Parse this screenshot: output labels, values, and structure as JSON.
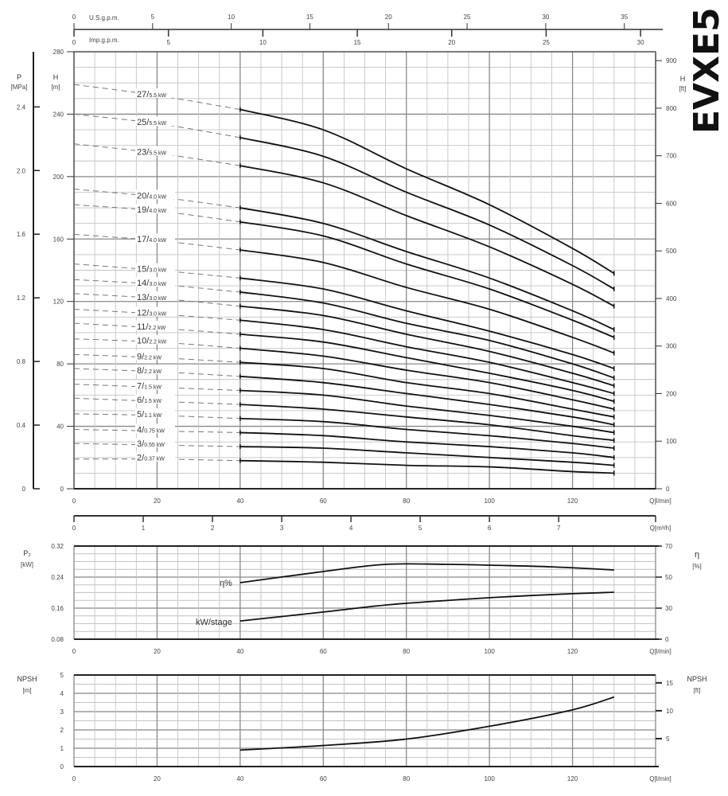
{
  "brand": "EVXE5",
  "top_axes": {
    "us_gpm": {
      "label": "U.S.g.p.m.",
      "ticks": [
        "0",
        "5",
        "10",
        "15",
        "20",
        "25",
        "30",
        "35"
      ]
    },
    "imp_gpm": {
      "label": "Imp.g.p.m.",
      "ticks": [
        "0",
        "5",
        "10",
        "15",
        "20",
        "25",
        "30"
      ]
    },
    "m3h": {
      "label": "Q[m³/h]",
      "ticks": [
        "0",
        "1",
        "2",
        "3",
        "4",
        "5",
        "6",
        "7"
      ]
    }
  },
  "chart_data": [
    {
      "type": "line",
      "xlabel": "Q[l/min]",
      "ylabel": "H",
      "ylabel_unit": "[m]",
      "y2label": "H",
      "y2label_unit": "[ft]",
      "y3label": "P",
      "y3label_unit": "[MPa]",
      "xlim": [
        0,
        140
      ],
      "ylim": [
        0,
        280
      ],
      "grid": true,
      "x_ticks": [
        "0",
        "20",
        "40",
        "60",
        "80",
        "100",
        "120"
      ],
      "y_ticks": [
        "0",
        "40",
        "80",
        "120",
        "160",
        "200",
        "240",
        "280"
      ],
      "ft_ticks": [
        "0",
        "100",
        "200",
        "300",
        "400",
        "500",
        "600",
        "700",
        "800",
        "900"
      ],
      "mpa_ticks": [
        "0",
        "0.4",
        "0.8",
        "1.2",
        "1.6",
        "2.0",
        "2.4"
      ],
      "x": [
        0,
        20,
        40,
        60,
        80,
        100,
        120,
        130
      ],
      "operating_range": [
        40,
        130
      ],
      "series": [
        {
          "stages": "27",
          "power": "5.5 kW",
          "values": [
            259,
            252,
            243,
            230,
            205,
            182,
            154,
            138
          ]
        },
        {
          "stages": "25",
          "power": "5.5 kW",
          "values": [
            240,
            234,
            225,
            213,
            190,
            169,
            143,
            128
          ]
        },
        {
          "stages": "23",
          "power": "5.5 kW",
          "values": [
            221,
            215,
            207,
            196,
            175,
            155,
            131,
            117
          ]
        },
        {
          "stages": "20",
          "power": "4.0 kW",
          "values": [
            192,
            187,
            180,
            170,
            152,
            135,
            114,
            102
          ]
        },
        {
          "stages": "19",
          "power": "4.0 kW",
          "values": [
            182,
            178,
            171,
            162,
            144,
            128,
            108,
            97
          ]
        },
        {
          "stages": "17",
          "power": "4.0 kW",
          "values": [
            163,
            159,
            153,
            145,
            129,
            115,
            97,
            87
          ]
        },
        {
          "stages": "15",
          "power": "3.0 kW",
          "values": [
            144,
            140,
            135,
            128,
            114,
            101,
            86,
            77
          ]
        },
        {
          "stages": "14",
          "power": "3.0 kW",
          "values": [
            134,
            131,
            126,
            119,
            106,
            95,
            80,
            71
          ]
        },
        {
          "stages": "13",
          "power": "3.0 kW",
          "values": [
            125,
            122,
            117,
            111,
            99,
            88,
            74,
            66
          ]
        },
        {
          "stages": "12",
          "power": "3.0 kW",
          "values": [
            115,
            112,
            108,
            102,
            91,
            81,
            68,
            61
          ]
        },
        {
          "stages": "11",
          "power": "2.2 kW",
          "values": [
            106,
            103,
            99,
            94,
            84,
            74,
            63,
            56
          ]
        },
        {
          "stages": "10",
          "power": "2.2 kW",
          "values": [
            96,
            94,
            90,
            85,
            76,
            68,
            57,
            51
          ]
        },
        {
          "stages": "9",
          "power": "2.2 kW",
          "values": [
            86,
            84,
            81,
            77,
            68,
            61,
            51,
            46
          ]
        },
        {
          "stages": "8",
          "power": "2.2 kW",
          "values": [
            77,
            75,
            72,
            68,
            61,
            54,
            46,
            41
          ]
        },
        {
          "stages": "7",
          "power": "1.5 kW",
          "values": [
            67,
            65,
            63,
            60,
            53,
            47,
            40,
            36
          ]
        },
        {
          "stages": "6",
          "power": "1.5 kW",
          "values": [
            58,
            56,
            54,
            51,
            46,
            41,
            34,
            31
          ]
        },
        {
          "stages": "5",
          "power": "1.1 kW",
          "values": [
            48,
            47,
            45,
            43,
            38,
            34,
            29,
            26
          ]
        },
        {
          "stages": "4",
          "power": "0.75 kW",
          "values": [
            38,
            37,
            36,
            34,
            30,
            27,
            23,
            20
          ]
        },
        {
          "stages": "3",
          "power": "0.55 kW",
          "values": [
            29,
            28,
            27,
            26,
            23,
            20,
            17,
            15
          ]
        },
        {
          "stages": "2",
          "power": "0.37 kW",
          "values": [
            19,
            19,
            18,
            17,
            15,
            14,
            11,
            10
          ]
        }
      ]
    },
    {
      "type": "line",
      "xlabel": "Q[l/min]",
      "ylabel": "P₂",
      "ylabel_unit": "[kW]",
      "y2label": "η",
      "y2label_unit": "[%]",
      "xlim": [
        0,
        140
      ],
      "ylim": [
        0.08,
        0.32
      ],
      "grid": true,
      "x_ticks": [
        "0",
        "20",
        "40",
        "60",
        "80",
        "100",
        "120"
      ],
      "y_ticks": [
        "0.08",
        "0.16",
        "0.24",
        "0.32"
      ],
      "y2_ticks": [
        "0",
        "30",
        "50",
        "70"
      ],
      "series": [
        {
          "name": "η%",
          "axis": "right",
          "x": [
            40,
            60,
            75,
            90,
            100,
            115,
            130
          ],
          "values": [
            46.4,
            53.6,
            58.2,
            58.2,
            57.7,
            56.6,
            54.6
          ]
        },
        {
          "name": "kW/stage",
          "axis": "left",
          "x": [
            40,
            60,
            75,
            90,
            100,
            115,
            130
          ],
          "values": [
            0.127,
            0.15,
            0.168,
            0.18,
            0.187,
            0.195,
            0.201
          ]
        }
      ]
    },
    {
      "type": "line",
      "xlabel": "Q[l/min]",
      "ylabel": "NPSH",
      "ylabel_unit": "[m]",
      "y2label": "NPSH",
      "y2label_unit": "[ft]",
      "xlim": [
        0,
        140
      ],
      "ylim": [
        0,
        5
      ],
      "grid": true,
      "x_ticks": [
        "0",
        "20",
        "40",
        "60",
        "80",
        "100",
        "120"
      ],
      "y_ticks": [
        "0",
        "1",
        "2",
        "3",
        "4",
        "5"
      ],
      "y2_ticks": [
        "5",
        "10",
        "15"
      ],
      "series": [
        {
          "x": [
            40,
            60,
            80,
            100,
            120,
            130
          ],
          "values": [
            0.9,
            1.15,
            1.5,
            2.2,
            3.1,
            3.8
          ]
        }
      ]
    }
  ]
}
